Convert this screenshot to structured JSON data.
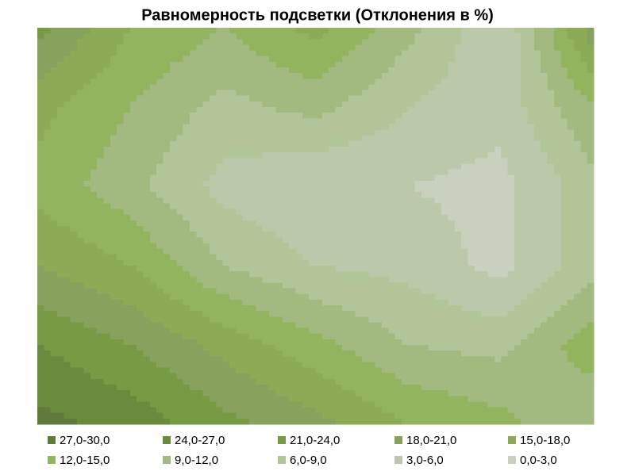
{
  "chart_data": {
    "type": "contour",
    "title": "Равномерность подсветки (Отклонения в %)",
    "z": [
      [
        22,
        15,
        12,
        16,
        10,
        3,
        20
      ],
      [
        16,
        12,
        8,
        10,
        6,
        4,
        12
      ],
      [
        14,
        10,
        5,
        3,
        3,
        2,
        8
      ],
      [
        18,
        15,
        9,
        6,
        5,
        2,
        8
      ],
      [
        24,
        21,
        17,
        13,
        9,
        8,
        14
      ],
      [
        28,
        26,
        22,
        19,
        15,
        13,
        9
      ]
    ],
    "levels": [
      0,
      3,
      6,
      9,
      12,
      15,
      18,
      21,
      24,
      27,
      30
    ],
    "legend": [
      {
        "label": "27,0-30,0",
        "color": "#5f7a3a"
      },
      {
        "label": "24,0-27,0",
        "color": "#6a8a3e"
      },
      {
        "label": "21,0-24,0",
        "color": "#779a45"
      },
      {
        "label": "18,0-21,0",
        "color": "#87a25c"
      },
      {
        "label": "15,0-18,0",
        "color": "#8dab56"
      },
      {
        "label": "12,0-15,0",
        "color": "#93b45f"
      },
      {
        "label": "9,0-12,0",
        "color": "#a2ba80"
      },
      {
        "label": "6,0-9,0",
        "color": "#b1c598"
      },
      {
        "label": "3,0-6,0",
        "color": "#bcc8aa"
      },
      {
        "label": "0,0-3,0",
        "color": "#c9d0bd"
      }
    ]
  }
}
